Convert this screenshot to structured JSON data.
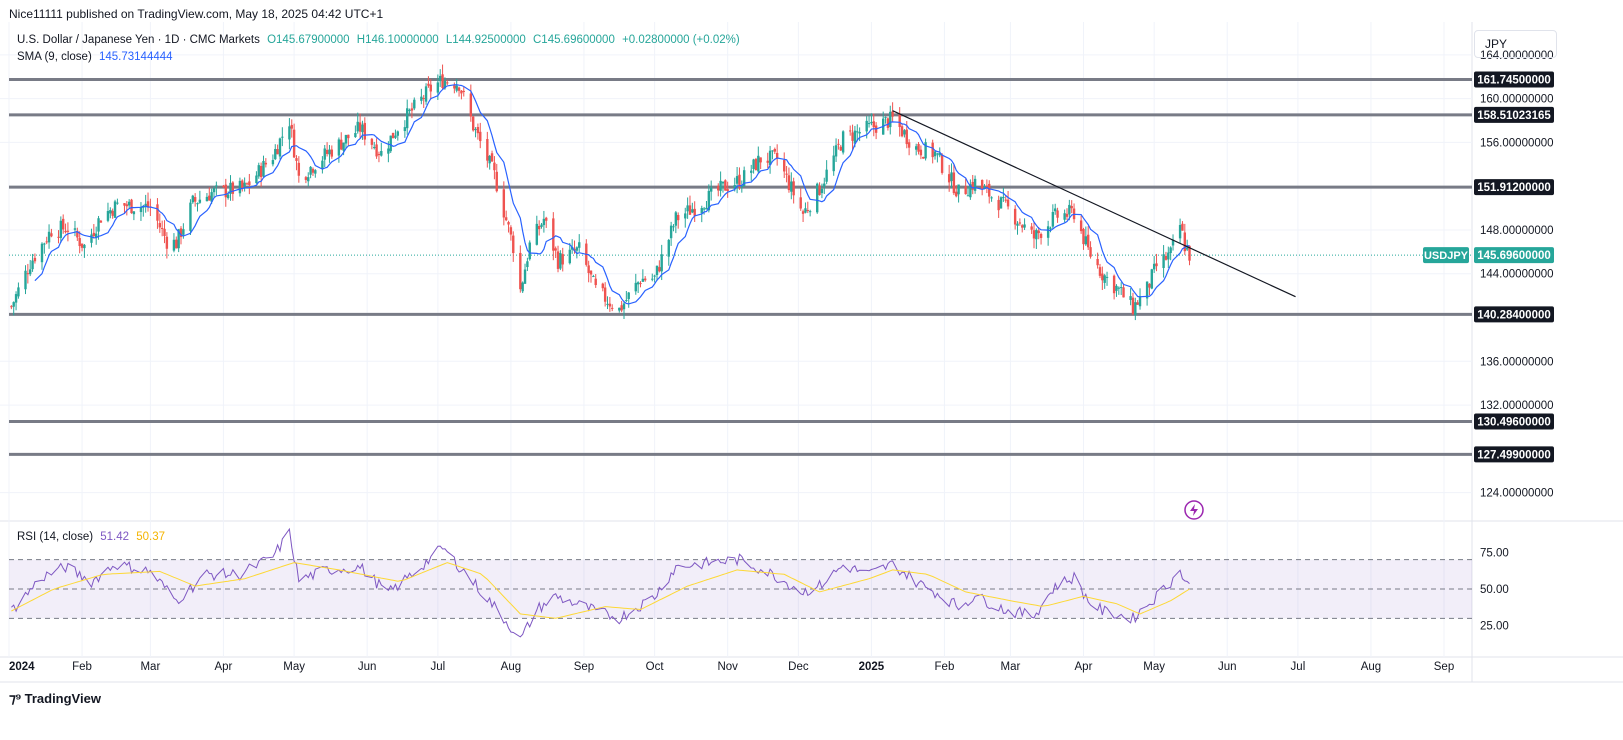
{
  "header": {
    "published": "Nice11111 published on TradingView.com, May 18, 2025 04:42 UTC+1"
  },
  "legend": {
    "symbol": "U.S. Dollar / Japanese Yen · 1D · CMC Markets",
    "o": "O145.67900000",
    "h": "H146.10000000",
    "l": "L144.92500000",
    "c": "C145.69600000",
    "change": "+0.02800000 (+0.02%)",
    "sma_label": "SMA (9, close)",
    "sma_value": "145.73144444"
  },
  "rsi_legend": {
    "label": "RSI (14, close)",
    "value": "51.42",
    "ma_value": "50.37"
  },
  "currency": "JPY",
  "footer": {
    "brand": "TradingView"
  },
  "colors": {
    "up": "#26a69a",
    "down": "#ef5350",
    "sma": "#2962ff",
    "level": "#787b86",
    "rsi": "#7e57c2",
    "rsi_ma": "#fdd835",
    "current": "#26a69a"
  },
  "chart_data": {
    "type": "candlestick",
    "y_range": [
      121.5,
      167.0
    ],
    "price_axis_ticks": [
      "164.00000000",
      "160.00000000",
      "156.00000000",
      "148.00000000",
      "144.00000000",
      "136.00000000",
      "132.00000000",
      "124.00000000"
    ],
    "tick_values": [
      164,
      160,
      156,
      148,
      144,
      136,
      132,
      124
    ],
    "x_axis_labels": [
      "2024",
      "Feb",
      "Mar",
      "Apr",
      "May",
      "Jun",
      "Jul",
      "Aug",
      "Sep",
      "Oct",
      "Nov",
      "Dec",
      "2025",
      "Feb",
      "Mar",
      "Apr",
      "May",
      "Jun",
      "Jul",
      "Aug",
      "Sep"
    ],
    "x_axis_dates": [
      "2024-01-01",
      "2024-02-01",
      "2024-03-01",
      "2024-04-01",
      "2024-05-01",
      "2024-06-01",
      "2024-07-01",
      "2024-08-01",
      "2024-09-01",
      "2024-10-01",
      "2024-11-01",
      "2024-12-01",
      "2025-01-01",
      "2025-02-01",
      "2025-03-01",
      "2025-04-01",
      "2025-05-01",
      "2025-06-01",
      "2025-07-01",
      "2025-08-01",
      "2025-09-01"
    ],
    "horizontal_levels": [
      {
        "value": 161.745,
        "label": "161.74500000"
      },
      {
        "value": 158.51023165,
        "label": "158.51023165"
      },
      {
        "value": 151.912,
        "label": "151.91200000"
      },
      {
        "value": 140.284,
        "label": "140.28400000"
      },
      {
        "value": 130.496,
        "label": "130.49600000"
      },
      {
        "value": 127.499,
        "label": "127.49900000"
      }
    ],
    "current_price": {
      "value": 145.696,
      "symbol": "USDJPY",
      "label": "145.69600000"
    },
    "trendline": {
      "start": [
        "2025-01-10",
        158.9
      ],
      "end": [
        "2025-06-30",
        141.9
      ]
    },
    "price_path": [
      [
        "2024-01-02",
        141.0
      ],
      [
        "2024-01-10",
        145.0
      ],
      [
        "2024-01-19",
        148.0
      ],
      [
        "2024-01-26",
        148.2
      ],
      [
        "2024-02-02",
        146.5
      ],
      [
        "2024-02-09",
        149.2
      ],
      [
        "2024-02-16",
        150.3
      ],
      [
        "2024-03-01",
        150.1
      ],
      [
        "2024-03-08",
        147.0
      ],
      [
        "2024-03-12",
        146.8
      ],
      [
        "2024-03-19",
        150.5
      ],
      [
        "2024-03-27",
        151.4
      ],
      [
        "2024-04-10",
        151.8
      ],
      [
        "2024-04-22",
        154.8
      ],
      [
        "2024-04-29",
        158.0
      ],
      [
        "2024-05-03",
        152.8
      ],
      [
        "2024-05-15",
        155.0
      ],
      [
        "2024-05-29",
        157.3
      ],
      [
        "2024-06-07",
        155.0
      ],
      [
        "2024-06-14",
        157.4
      ],
      [
        "2024-06-28",
        160.9
      ],
      [
        "2024-07-03",
        161.7
      ],
      [
        "2024-07-10",
        161.4
      ],
      [
        "2024-07-16",
        157.5
      ],
      [
        "2024-07-25",
        153.0
      ],
      [
        "2024-08-02",
        146.5
      ],
      [
        "2024-08-05",
        142.5
      ],
      [
        "2024-08-09",
        146.6
      ],
      [
        "2024-08-15",
        149.0
      ],
      [
        "2024-08-21",
        145.2
      ],
      [
        "2024-08-30",
        146.2
      ],
      [
        "2024-09-06",
        142.5
      ],
      [
        "2024-09-16",
        140.7
      ],
      [
        "2024-09-25",
        143.5
      ],
      [
        "2024-10-01",
        143.6
      ],
      [
        "2024-10-10",
        149.0
      ],
      [
        "2024-10-21",
        150.5
      ],
      [
        "2024-10-31",
        152.0
      ],
      [
        "2024-11-07",
        152.6
      ],
      [
        "2024-11-15",
        154.5
      ],
      [
        "2024-11-22",
        154.5
      ],
      [
        "2024-12-03",
        149.5
      ],
      [
        "2024-12-10",
        151.8
      ],
      [
        "2024-12-20",
        156.4
      ],
      [
        "2024-12-31",
        157.3
      ],
      [
        "2025-01-10",
        158.1
      ],
      [
        "2025-01-20",
        155.5
      ],
      [
        "2025-01-28",
        155.0
      ],
      [
        "2025-02-07",
        151.4
      ],
      [
        "2025-02-14",
        152.3
      ],
      [
        "2025-02-28",
        149.9
      ],
      [
        "2025-03-11",
        147.3
      ],
      [
        "2025-03-20",
        149.2
      ],
      [
        "2025-03-28",
        149.6
      ],
      [
        "2025-04-03",
        146.1
      ],
      [
        "2025-04-09",
        144.0
      ],
      [
        "2025-04-16",
        142.5
      ],
      [
        "2025-04-22",
        140.9
      ],
      [
        "2025-04-28",
        142.6
      ],
      [
        "2025-05-02",
        144.7
      ],
      [
        "2025-05-08",
        145.8
      ],
      [
        "2025-05-12",
        148.4
      ],
      [
        "2025-05-14",
        146.6
      ],
      [
        "2025-05-16",
        145.7
      ]
    ],
    "rsi": {
      "ticks": [
        "75.00",
        "50.00",
        "25.00"
      ],
      "tick_values": [
        75,
        50,
        25
      ],
      "upper_band": 70,
      "middle": 50,
      "lower_band": 30,
      "y_range": [
        5,
        95
      ],
      "path": [
        [
          "2024-01-02",
          35
        ],
        [
          "2024-01-15",
          58
        ],
        [
          "2024-01-25",
          65
        ],
        [
          "2024-02-05",
          55
        ],
        [
          "2024-02-15",
          67
        ],
        [
          "2024-03-01",
          62
        ],
        [
          "2024-03-12",
          42
        ],
        [
          "2024-03-25",
          60
        ],
        [
          "2024-04-08",
          60
        ],
        [
          "2024-04-22",
          72
        ],
        [
          "2024-04-29",
          88
        ],
        [
          "2024-05-03",
          56
        ],
        [
          "2024-05-15",
          63
        ],
        [
          "2024-05-29",
          65
        ],
        [
          "2024-06-10",
          47
        ],
        [
          "2024-06-20",
          60
        ],
        [
          "2024-07-03",
          78
        ],
        [
          "2024-07-12",
          62
        ],
        [
          "2024-07-25",
          38
        ],
        [
          "2024-08-02",
          22
        ],
        [
          "2024-08-05",
          15
        ],
        [
          "2024-08-12",
          36
        ],
        [
          "2024-08-20",
          45
        ],
        [
          "2024-09-06",
          35
        ],
        [
          "2024-09-16",
          30
        ],
        [
          "2024-10-01",
          45
        ],
        [
          "2024-10-10",
          65
        ],
        [
          "2024-10-25",
          68
        ],
        [
          "2024-11-06",
          70
        ],
        [
          "2024-11-20",
          60
        ],
        [
          "2024-12-03",
          48
        ],
        [
          "2024-12-10",
          52
        ],
        [
          "2024-12-20",
          66
        ],
        [
          "2024-12-31",
          60
        ],
        [
          "2025-01-10",
          67
        ],
        [
          "2025-01-20",
          55
        ],
        [
          "2025-01-28",
          48
        ],
        [
          "2025-02-07",
          38
        ],
        [
          "2025-02-14",
          45
        ],
        [
          "2025-02-28",
          35
        ],
        [
          "2025-03-11",
          32
        ],
        [
          "2025-03-20",
          52
        ],
        [
          "2025-03-28",
          58
        ],
        [
          "2025-04-03",
          42
        ],
        [
          "2025-04-09",
          35
        ],
        [
          "2025-04-22",
          30
        ],
        [
          "2025-05-02",
          45
        ],
        [
          "2025-05-12",
          62
        ],
        [
          "2025-05-16",
          51
        ]
      ],
      "ma_path": [
        [
          "2024-01-02",
          35
        ],
        [
          "2024-01-20",
          50
        ],
        [
          "2024-02-10",
          60
        ],
        [
          "2024-03-05",
          62
        ],
        [
          "2024-03-20",
          52
        ],
        [
          "2024-04-10",
          57
        ],
        [
          "2024-05-01",
          68
        ],
        [
          "2024-05-20",
          63
        ],
        [
          "2024-06-15",
          55
        ],
        [
          "2024-07-05",
          68
        ],
        [
          "2024-07-20",
          60
        ],
        [
          "2024-08-05",
          33
        ],
        [
          "2024-08-20",
          30
        ],
        [
          "2024-09-10",
          38
        ],
        [
          "2024-09-25",
          36
        ],
        [
          "2024-10-15",
          52
        ],
        [
          "2024-11-05",
          63
        ],
        [
          "2024-11-25",
          60
        ],
        [
          "2024-12-10",
          48
        ],
        [
          "2024-12-31",
          57
        ],
        [
          "2025-01-10",
          63
        ],
        [
          "2025-01-25",
          60
        ],
        [
          "2025-02-10",
          48
        ],
        [
          "2025-03-01",
          42
        ],
        [
          "2025-03-15",
          38
        ],
        [
          "2025-04-01",
          45
        ],
        [
          "2025-04-15",
          40
        ],
        [
          "2025-04-25",
          33
        ],
        [
          "2025-05-08",
          42
        ],
        [
          "2025-05-16",
          50
        ]
      ]
    }
  }
}
